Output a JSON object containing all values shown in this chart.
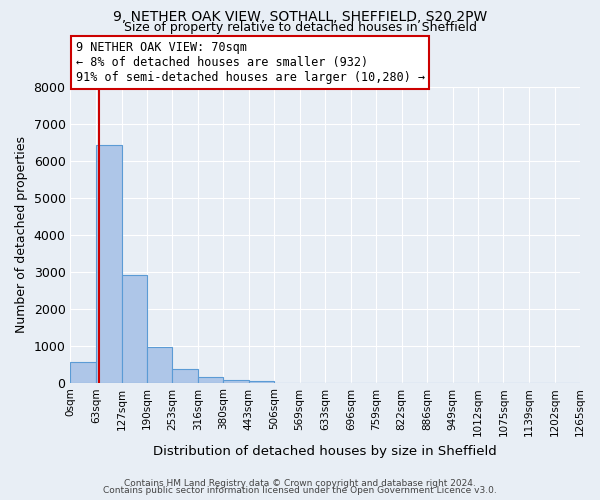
{
  "title": "9, NETHER OAK VIEW, SOTHALL, SHEFFIELD, S20 2PW",
  "subtitle": "Size of property relative to detached houses in Sheffield",
  "xlabel": "Distribution of detached houses by size in Sheffield",
  "ylabel": "Number of detached properties",
  "bar_edges": [
    0,
    63,
    127,
    190,
    253,
    316,
    380,
    443,
    506,
    569,
    633,
    696,
    759,
    822,
    886,
    949,
    1012,
    1075,
    1139,
    1202,
    1265
  ],
  "bar_heights": [
    560,
    6430,
    2920,
    960,
    360,
    160,
    70,
    50,
    0,
    0,
    0,
    0,
    0,
    0,
    0,
    0,
    0,
    0,
    0,
    0
  ],
  "bar_color": "#aec6e8",
  "bar_edgecolor": "#5b9bd5",
  "bar_linewidth": 0.8,
  "property_line_x": 70,
  "property_line_color": "#cc0000",
  "ylim": [
    0,
    8000
  ],
  "yticks": [
    0,
    1000,
    2000,
    3000,
    4000,
    5000,
    6000,
    7000,
    8000
  ],
  "xtick_labels": [
    "0sqm",
    "63sqm",
    "127sqm",
    "190sqm",
    "253sqm",
    "316sqm",
    "380sqm",
    "443sqm",
    "506sqm",
    "569sqm",
    "633sqm",
    "696sqm",
    "759sqm",
    "822sqm",
    "886sqm",
    "949sqm",
    "1012sqm",
    "1075sqm",
    "1139sqm",
    "1202sqm",
    "1265sqm"
  ],
  "annotation_line1": "9 NETHER OAK VIEW: 70sqm",
  "annotation_line2": "← 8% of detached houses are smaller (932)",
  "annotation_line3": "91% of semi-detached houses are larger (10,280) →",
  "annotation_box_color": "#cc0000",
  "annotation_box_facecolor": "white",
  "bg_color": "#e8eef5",
  "grid_color": "white",
  "footer_line1": "Contains HM Land Registry data © Crown copyright and database right 2024.",
  "footer_line2": "Contains public sector information licensed under the Open Government Licence v3.0."
}
